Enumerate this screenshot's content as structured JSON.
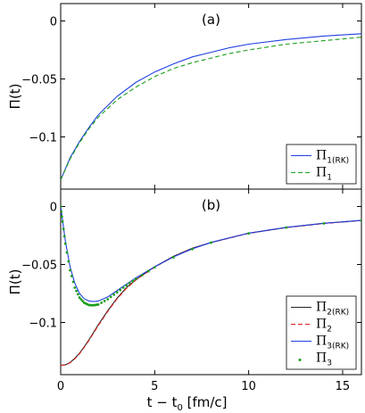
{
  "chart_data": [
    {
      "type": "line",
      "panel_label": "(a)",
      "ylabel": "Π(t)",
      "xlabel": "",
      "xlim": [
        0,
        16
      ],
      "ylim": [
        -0.145,
        0.015
      ],
      "y_ticks": [
        0,
        -0.05,
        -0.1
      ],
      "y_tick_labels": [
        "0",
        "−0.05",
        "−0.1"
      ],
      "x_tick_labels": [],
      "legend_position": "bottom-right",
      "series": [
        {
          "name": "Π1(RK)",
          "label_main": "Π",
          "label_sub": "1(RK)",
          "color": "#1f3fe0",
          "style": "solid",
          "x": [
            0,
            0.5,
            1,
            1.5,
            2,
            3,
            4,
            5,
            6,
            7,
            8,
            9,
            10,
            12,
            14,
            16
          ],
          "y": [
            -0.137,
            -0.118,
            -0.104,
            -0.092,
            -0.081,
            -0.065,
            -0.053,
            -0.044,
            -0.037,
            -0.031,
            -0.027,
            -0.023,
            -0.02,
            -0.016,
            -0.013,
            -0.011
          ]
        },
        {
          "name": "Π1",
          "label_main": "Π",
          "label_sub": "1",
          "color": "#1a9e1a",
          "style": "dashed",
          "x": [
            0,
            0.5,
            1,
            1.5,
            2,
            3,
            4,
            5,
            6,
            7,
            8,
            9,
            10,
            12,
            14,
            16
          ],
          "y": [
            -0.137,
            -0.119,
            -0.105,
            -0.093,
            -0.083,
            -0.068,
            -0.057,
            -0.048,
            -0.041,
            -0.036,
            -0.032,
            -0.028,
            -0.025,
            -0.02,
            -0.017,
            -0.014
          ]
        }
      ]
    },
    {
      "type": "line",
      "panel_label": "(b)",
      "ylabel": "Π(t)",
      "xlabel": "t − t0 [fm/c]",
      "xlabel_main": "t − t",
      "xlabel_sub": "0",
      "xlabel_tail": " [fm/c]",
      "xlim": [
        0,
        16
      ],
      "ylim": [
        -0.145,
        0.015
      ],
      "y_ticks": [
        0,
        -0.05,
        -0.1
      ],
      "y_tick_labels": [
        "0",
        "−0.05",
        "−0.1"
      ],
      "x_ticks": [
        0,
        5,
        10,
        15
      ],
      "x_tick_labels": [
        "0",
        "5",
        "10",
        "15"
      ],
      "legend_position": "bottom-right",
      "series": [
        {
          "name": "Π2(RK)",
          "label_main": "Π",
          "label_sub": "2(RK)",
          "color": "#222222",
          "style": "solid",
          "x": [
            0,
            0.25,
            0.5,
            0.75,
            1,
            1.25,
            1.5,
            2,
            2.5,
            3,
            3.5,
            4,
            5,
            6,
            7,
            8,
            10,
            12,
            14,
            16
          ],
          "y": [
            -0.137,
            -0.1365,
            -0.1345,
            -0.131,
            -0.1265,
            -0.121,
            -0.115,
            -0.102,
            -0.09,
            -0.079,
            -0.07,
            -0.063,
            -0.052,
            -0.043,
            -0.036,
            -0.031,
            -0.023,
            -0.018,
            -0.0145,
            -0.012
          ]
        },
        {
          "name": "Π2",
          "label_main": "Π",
          "label_sub": "2",
          "color": "#e02020",
          "style": "dashed",
          "x": [
            0,
            0.25,
            0.5,
            0.75,
            1,
            1.25,
            1.5,
            2,
            2.5,
            3,
            3.5,
            4,
            5,
            6,
            7,
            8,
            10,
            12,
            14,
            16
          ],
          "y": [
            -0.137,
            -0.1367,
            -0.1348,
            -0.1314,
            -0.127,
            -0.1215,
            -0.1156,
            -0.1027,
            -0.0906,
            -0.0796,
            -0.0706,
            -0.0634,
            -0.0523,
            -0.0433,
            -0.0362,
            -0.0311,
            -0.0232,
            -0.0182,
            -0.0147,
            -0.0122
          ]
        },
        {
          "name": "Π3(RK)",
          "label_main": "Π",
          "label_sub": "3(RK)",
          "color": "#1f3fe0",
          "style": "solid",
          "x": [
            0,
            0.1,
            0.25,
            0.5,
            0.75,
            1,
            1.25,
            1.5,
            1.75,
            2,
            2.5,
            3,
            3.5,
            4,
            5,
            6,
            7,
            8,
            10,
            12,
            14,
            16
          ],
          "y": [
            0.0,
            -0.012,
            -0.03,
            -0.052,
            -0.066,
            -0.075,
            -0.0795,
            -0.0815,
            -0.082,
            -0.0815,
            -0.078,
            -0.0725,
            -0.067,
            -0.0615,
            -0.052,
            -0.0435,
            -0.0365,
            -0.031,
            -0.023,
            -0.018,
            -0.0145,
            -0.012
          ]
        },
        {
          "name": "Π3",
          "label_main": "Π",
          "label_sub": "3",
          "color": "#1a9e1a",
          "style": "dots",
          "x": [
            0,
            0.1,
            0.25,
            0.5,
            0.75,
            1,
            1.25,
            1.5,
            1.75,
            2,
            2.5,
            3,
            3.5,
            4,
            5,
            6,
            7,
            8,
            10,
            12,
            14,
            16
          ],
          "y": [
            0.0,
            -0.013,
            -0.032,
            -0.055,
            -0.07,
            -0.0785,
            -0.083,
            -0.085,
            -0.0852,
            -0.0845,
            -0.08,
            -0.074,
            -0.068,
            -0.0625,
            -0.0525,
            -0.0438,
            -0.0367,
            -0.0312,
            -0.0232,
            -0.0181,
            -0.0146,
            -0.0121
          ]
        }
      ]
    }
  ]
}
